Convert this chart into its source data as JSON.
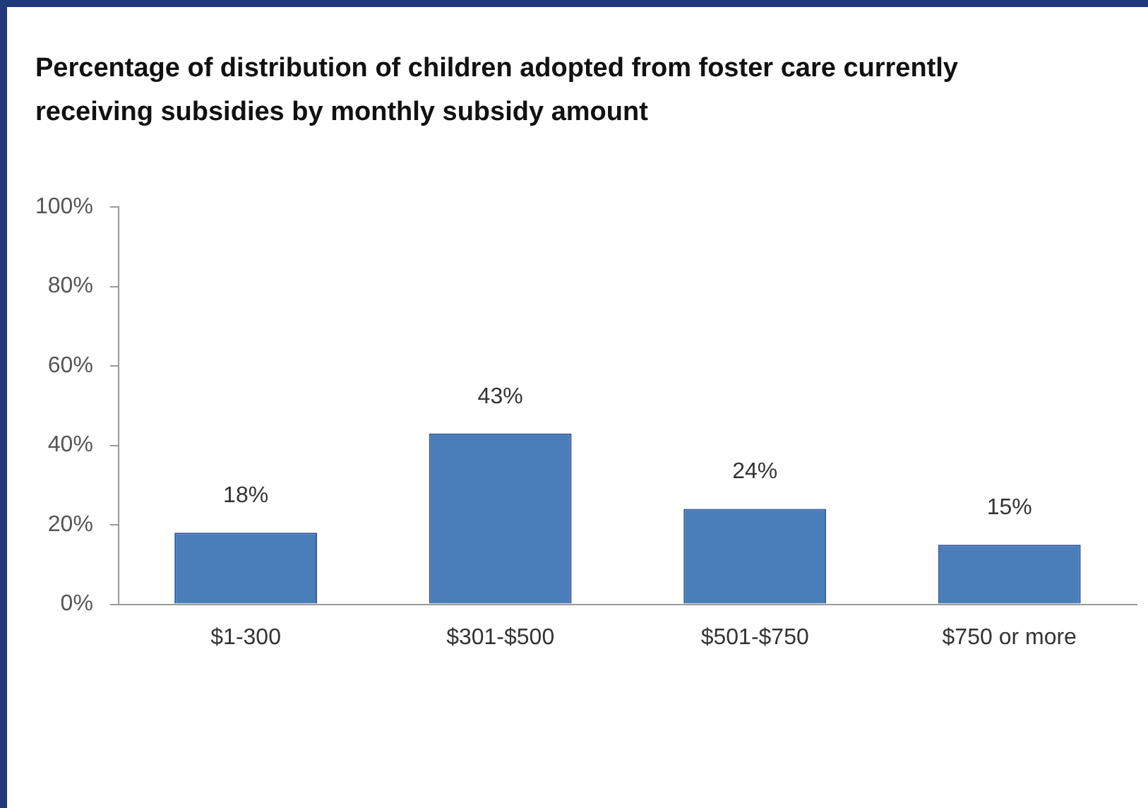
{
  "chart_data": {
    "type": "bar",
    "title": "Percentage of distribution of children adopted from foster care currently receiving subsidies by monthly subsidy amount",
    "categories": [
      "$1-300",
      "$301-$500",
      "$501-$750",
      "$750 or more"
    ],
    "values": [
      18,
      43,
      24,
      15
    ],
    "value_labels": [
      "18%",
      "43%",
      "24%",
      "15%"
    ],
    "color": "#4a7ebb",
    "ylim": [
      0,
      100
    ],
    "yticks": [
      {
        "value": 0,
        "label": "0%"
      },
      {
        "value": 20,
        "label": "20%"
      },
      {
        "value": 40,
        "label": "40%"
      },
      {
        "value": 60,
        "label": "60%"
      },
      {
        "value": 80,
        "label": "80%"
      },
      {
        "value": 100,
        "label": "100%"
      }
    ],
    "grid": false,
    "legend": false
  }
}
